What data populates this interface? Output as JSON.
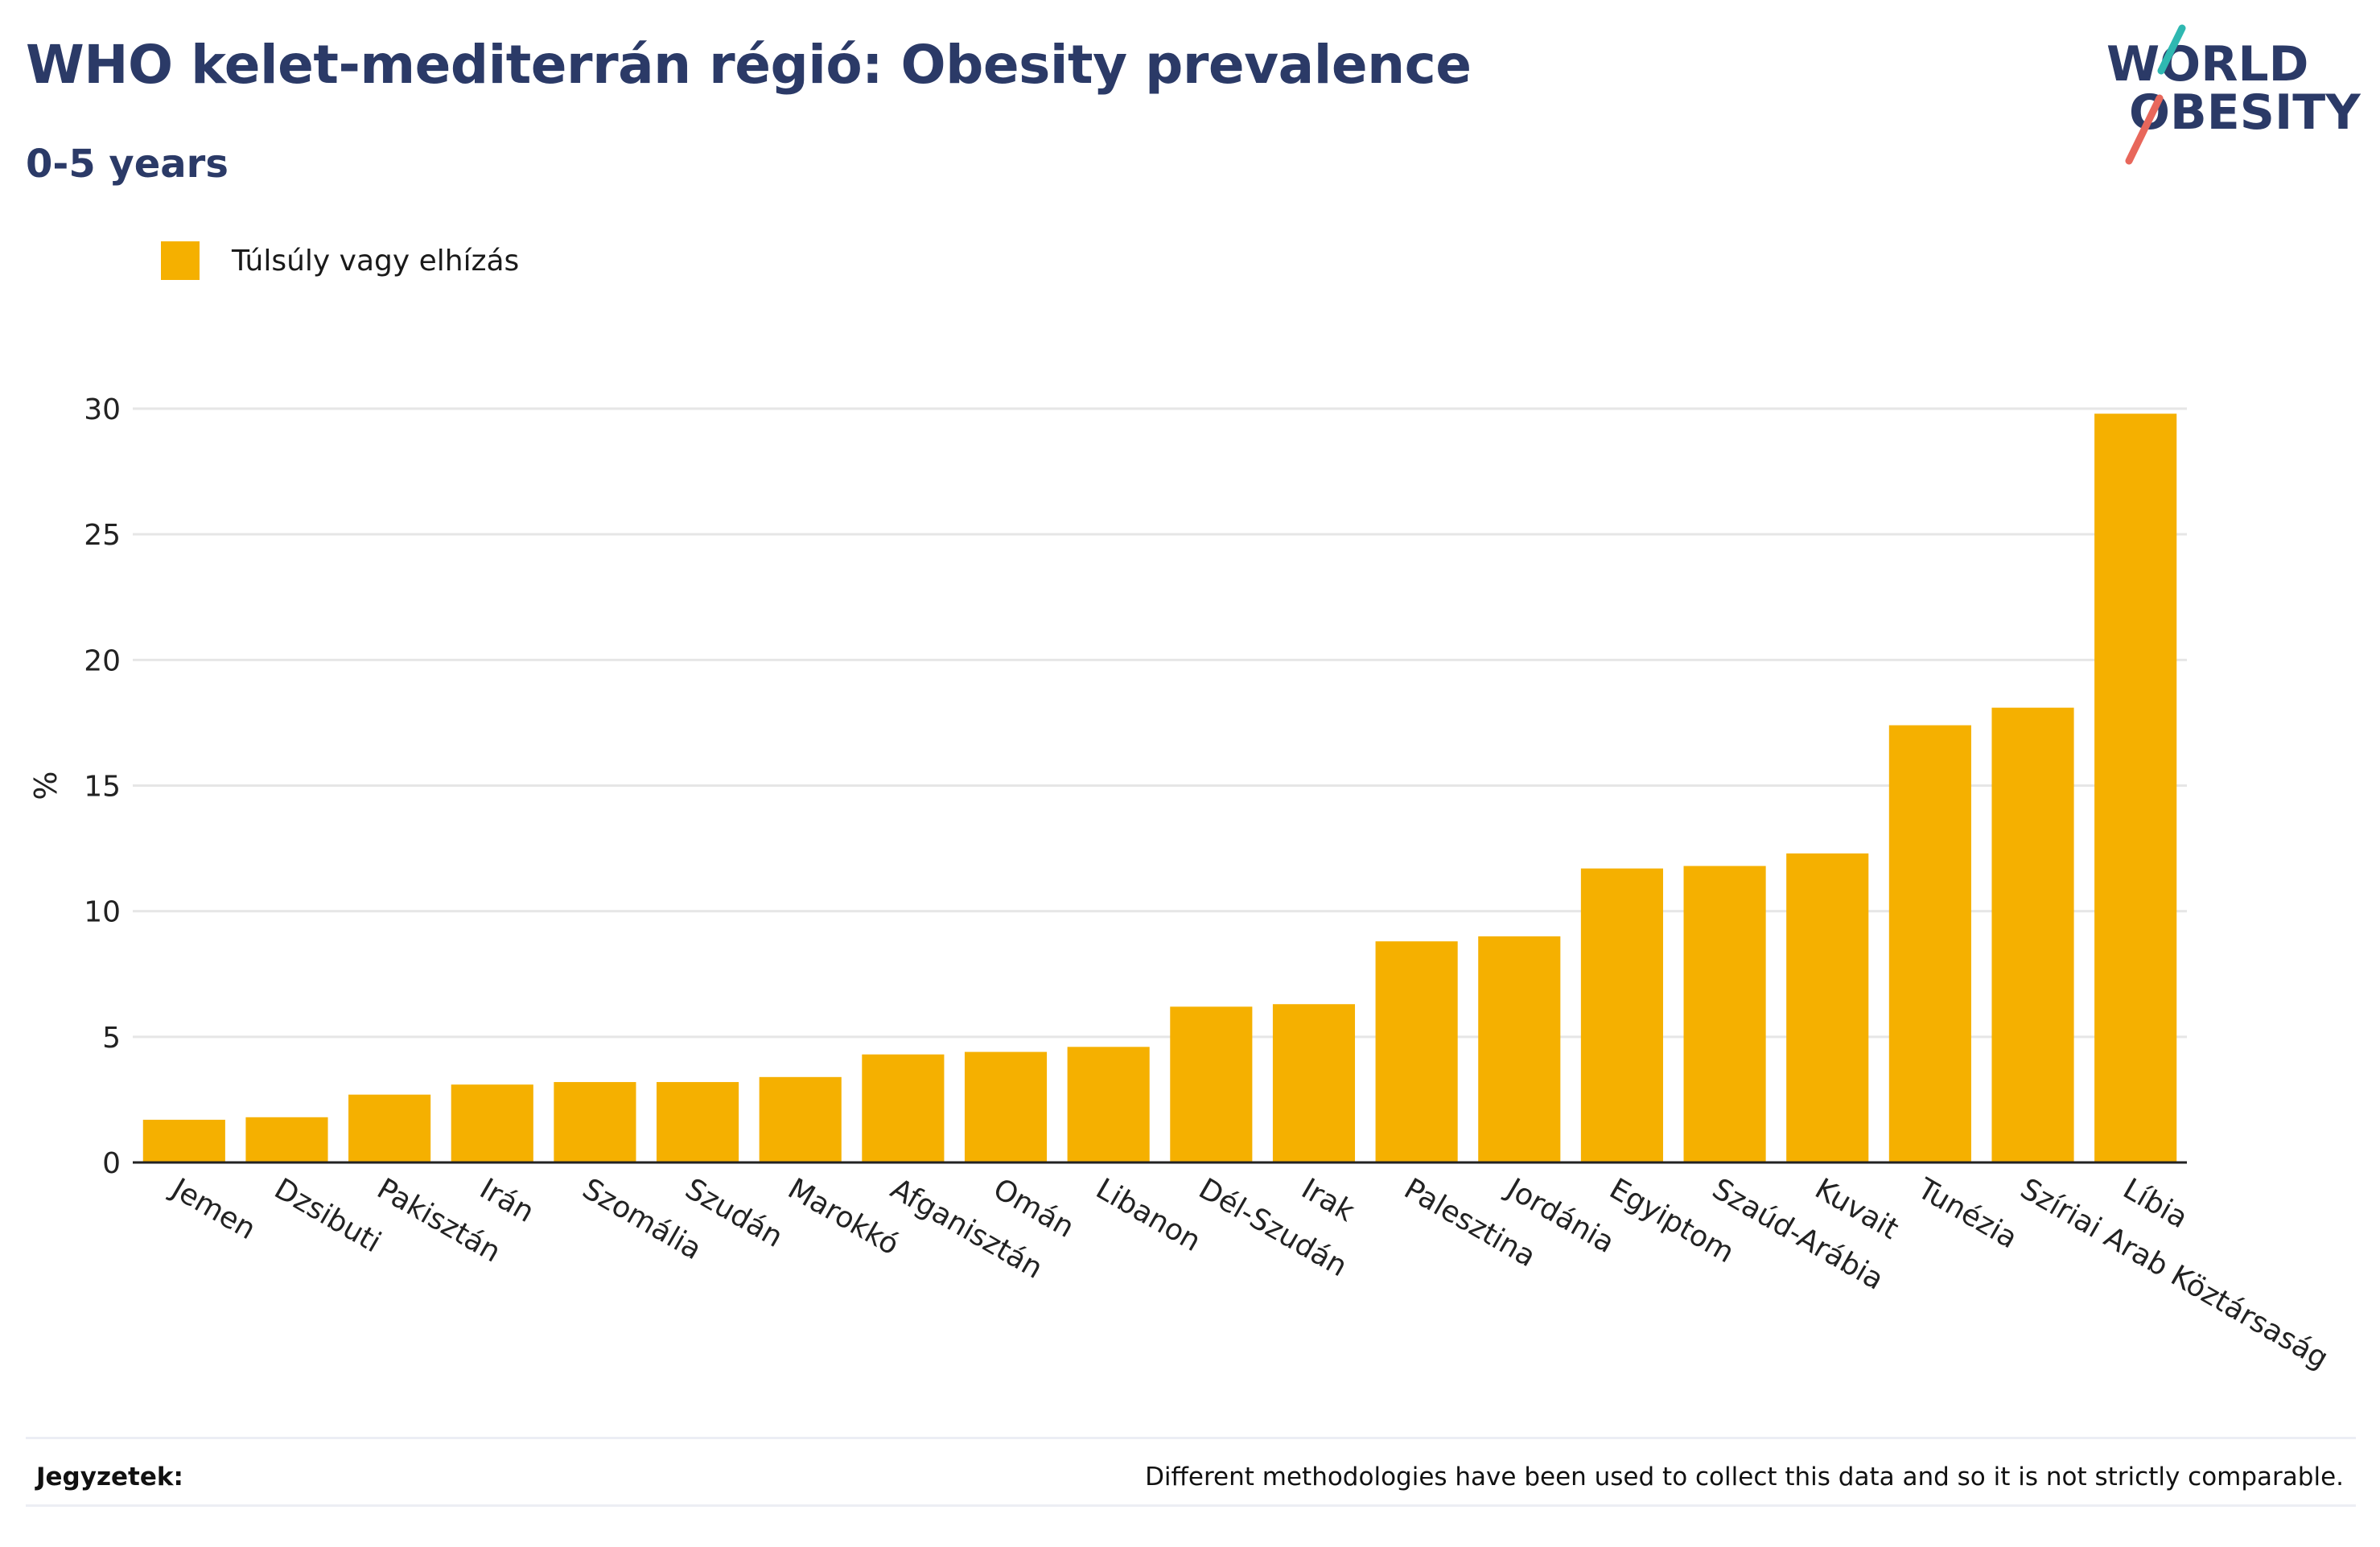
{
  "header": {
    "title": "WHO kelet-mediterrán régió: Obesity prevalence",
    "subtitle": "0-5 years"
  },
  "logo": {
    "line1": "WORLD",
    "line2": "OBESITY"
  },
  "colors": {
    "bar": "#f5b000",
    "title": "#2b3a67",
    "logo_teal": "#2fb8b1",
    "logo_red": "#e8675b",
    "grid": "#e6e6e6"
  },
  "chart_data": {
    "type": "bar",
    "ylabel": "%",
    "xlabel": "",
    "ylim": [
      0,
      30
    ],
    "yticks": [
      0,
      5,
      10,
      15,
      20,
      25,
      30
    ],
    "grid": true,
    "legend_position": "top-left",
    "categories": [
      "Jemen",
      "Dzsibuti",
      "Pakisztán",
      "Irán",
      "Szomália",
      "Szudán",
      "Marokkó",
      "Afganisztán",
      "Omán",
      "Libanon",
      "Dél-Szudán",
      "Irak",
      "Palesztina",
      "Jordánia",
      "Egyiptom",
      "Szaúd-Arábia",
      "Kuvait",
      "Tunézia",
      "Szíriai Arab Köztársaság",
      "Líbia"
    ],
    "series": [
      {
        "name": "Túlsúly vagy elhízás",
        "values": [
          1.7,
          1.8,
          2.7,
          3.1,
          3.2,
          3.2,
          3.4,
          4.3,
          4.4,
          4.6,
          6.2,
          6.3,
          8.8,
          9.0,
          11.7,
          11.8,
          12.3,
          17.4,
          18.1,
          29.8
        ]
      }
    ]
  },
  "footer": {
    "notes_label": "Jegyzetek:",
    "notes_text": "Different methodologies have been used to collect this data and so it is not strictly comparable."
  }
}
